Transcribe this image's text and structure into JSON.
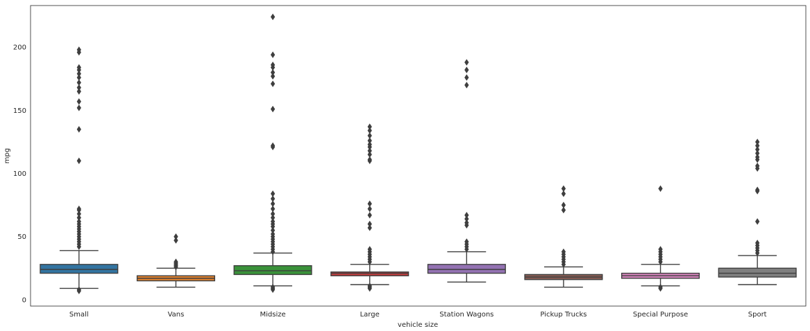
{
  "chart_data": {
    "type": "box",
    "xlabel": "vehicle size",
    "ylabel": "mpg",
    "ylim": [
      -5,
      233
    ],
    "y_ticks": [
      0,
      50,
      100,
      150,
      200
    ],
    "grid": false,
    "categories": [
      "Small",
      "Vans",
      "Midsize",
      "Large",
      "Station Wagons",
      "Pickup Trucks",
      "Special Purpose",
      "Sport"
    ],
    "colors": [
      "#3274a1",
      "#e1812c",
      "#3a923a",
      "#c03d3e",
      "#9372b2",
      "#845b53",
      "#d684bd",
      "#7f7f7f"
    ],
    "outline_color": "#3f3f3f",
    "boxes": [
      {
        "name": "Small",
        "whislo": 9,
        "q1": 21,
        "med": 24,
        "q3": 28,
        "whishi": 39,
        "fliers": [
          7,
          8,
          42,
          44,
          46,
          48,
          50,
          52,
          54,
          56,
          58,
          60,
          62,
          65,
          68,
          71,
          72,
          110,
          135,
          152,
          157,
          165,
          168,
          172,
          176,
          179,
          182,
          184,
          196,
          198
        ]
      },
      {
        "name": "Vans",
        "whislo": 10,
        "q1": 15,
        "med": 17,
        "q3": 19,
        "whishi": 25,
        "fliers": [
          26,
          27,
          28,
          29,
          30,
          47,
          50
        ]
      },
      {
        "name": "Midsize",
        "whislo": 11,
        "q1": 20,
        "med": 23,
        "q3": 27,
        "whishi": 37,
        "fliers": [
          8,
          9,
          10,
          38,
          40,
          42,
          44,
          46,
          48,
          50,
          52,
          55,
          58,
          60,
          62,
          65,
          68,
          72,
          76,
          80,
          84,
          121,
          122,
          151,
          171,
          177,
          180,
          184,
          186,
          194,
          224
        ]
      },
      {
        "name": "Large",
        "whislo": 12,
        "q1": 19,
        "med": 21,
        "q3": 22,
        "whishi": 28,
        "fliers": [
          9,
          10,
          11,
          30,
          32,
          34,
          36,
          38,
          40,
          57,
          60,
          67,
          72,
          76,
          110,
          111,
          115,
          118,
          121,
          123,
          126,
          130,
          134,
          137
        ]
      },
      {
        "name": "Station Wagons",
        "whislo": 14,
        "q1": 21,
        "med": 24,
        "q3": 28,
        "whishi": 38,
        "fliers": [
          40,
          42,
          44,
          46,
          59,
          61,
          64,
          67,
          170,
          176,
          182,
          188
        ]
      },
      {
        "name": "Pickup Trucks",
        "whislo": 10,
        "q1": 16,
        "med": 18,
        "q3": 20,
        "whishi": 26,
        "fliers": [
          28,
          30,
          32,
          34,
          36,
          38,
          71,
          75,
          84,
          88
        ]
      },
      {
        "name": "Special Purpose",
        "whislo": 11,
        "q1": 17,
        "med": 19,
        "q3": 21,
        "whishi": 28,
        "fliers": [
          9,
          10,
          30,
          32,
          34,
          36,
          38,
          40,
          88
        ]
      },
      {
        "name": "Sport",
        "whislo": 12,
        "q1": 18,
        "med": 21,
        "q3": 25,
        "whishi": 35,
        "fliers": [
          37,
          39,
          41,
          43,
          45,
          62,
          86,
          87,
          104,
          106,
          111,
          113,
          116,
          119,
          122,
          125
        ]
      }
    ]
  }
}
